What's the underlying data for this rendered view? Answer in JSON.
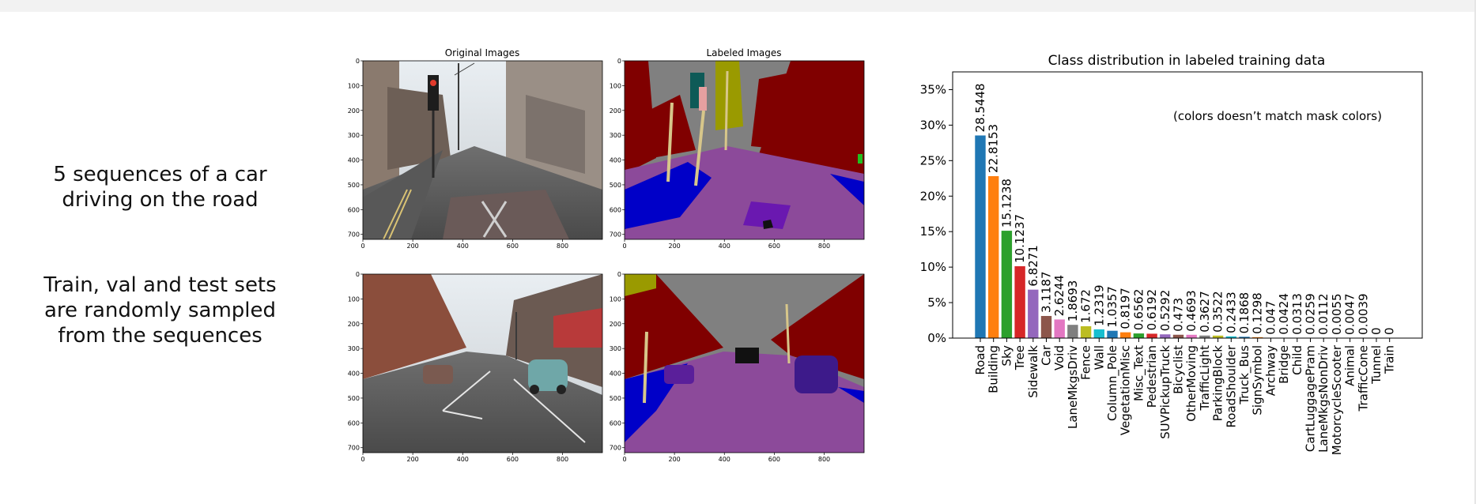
{
  "captions": {
    "sequences": "5 sequences of a car driving on the road",
    "sampling": "Train, val and test sets are randomly sampled from the sequences"
  },
  "image_grid": {
    "col_titles": [
      "Original Images",
      "Labeled Images"
    ],
    "x_ticks": [
      "0",
      "200",
      "400",
      "600",
      "800"
    ],
    "y_ticks": [
      "0",
      "100",
      "200",
      "300",
      "400",
      "500",
      "600",
      "700"
    ]
  },
  "chart_data": {
    "type": "bar",
    "title": "Class distribution in labeled training data",
    "annotation": "(colors doesn’t match mask colors)",
    "xlabel": "",
    "ylabel": "",
    "y_unit": "percent",
    "ylim": [
      0,
      37.5
    ],
    "y_ticks": [
      0,
      5,
      10,
      15,
      20,
      25,
      30,
      35
    ],
    "y_tick_labels": [
      "0%",
      "5%",
      "10%",
      "15%",
      "20%",
      "25%",
      "30%",
      "35%"
    ],
    "grid": false,
    "categories": [
      "Road",
      "Building",
      "Sky",
      "Tree",
      "Sidewalk",
      "Car",
      "Void",
      "LaneMkgsDriv",
      "Fence",
      "Wall",
      "Column_Pole",
      "VegetationMisc",
      "Misc_Text",
      "Pedestrian",
      "SUVPickupTruck",
      "Bicyclist",
      "OtherMoving",
      "TrafficLight",
      "ParkingBlock",
      "RoadShoulder",
      "Truck_Bus",
      "SignSymbol",
      "Archway",
      "Bridge",
      "Child",
      "CartLuggagePram",
      "LaneMkgsNonDriv",
      "MotorcycleScooter",
      "Animal",
      "TrafficCone",
      "Tunnel",
      "Train"
    ],
    "values": [
      28.5448,
      22.8153,
      15.1238,
      10.1237,
      6.8271,
      3.1187,
      2.6244,
      1.8693,
      1.672,
      1.2319,
      1.0357,
      0.8197,
      0.6562,
      0.6192,
      0.5292,
      0.473,
      0.4693,
      0.3627,
      0.3522,
      0.2433,
      0.1868,
      0.1298,
      0.047,
      0.0424,
      0.0313,
      0.0259,
      0.0112,
      0.0055,
      0.0047,
      0.0039,
      0,
      0
    ],
    "value_labels": [
      "28.5448",
      "22.8153",
      "15.1238",
      "10.1237",
      "6.8271",
      "3.1187",
      "2.6244",
      "1.8693",
      "1.672",
      "1.2319",
      "1.0357",
      "0.8197",
      "0.6562",
      "0.6192",
      "0.5292",
      "0.473",
      "0.4693",
      "0.3627",
      "0.3522",
      "0.2433",
      "0.1868",
      "0.1298",
      "0.047",
      "0.0424",
      "0.0313",
      "0.0259",
      "0.0112",
      "0.0055",
      "0.0047",
      "0.0039",
      "0",
      "0"
    ],
    "colors": [
      "#1f77b4",
      "#ff7f0e",
      "#2ca02c",
      "#d62728",
      "#9467bd",
      "#8c564b",
      "#e377c2",
      "#7f7f7f",
      "#bcbd22",
      "#17becf"
    ]
  }
}
